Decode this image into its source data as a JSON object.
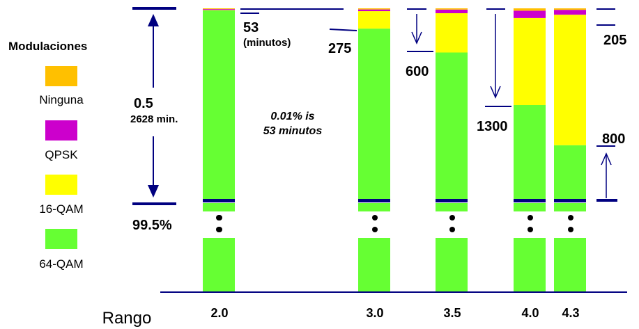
{
  "legend": {
    "title": "Modulaciones",
    "items": [
      {
        "label": "Ninguna",
        "color": "#FFC000"
      },
      {
        "label": "QPSK",
        "color": "#CC00CC"
      },
      {
        "label": "16-QAM",
        "color": "#FFFF00"
      },
      {
        "label": "64-QAM",
        "color": "#66FF33"
      }
    ]
  },
  "annotations": {
    "left_value": "0.5",
    "left_minutes": "2628 min.",
    "baseline": "99.5%",
    "note_line1": "0.01% is",
    "note_line2": "53 minutos",
    "min_53": "53",
    "min_53_unit": "(minutos)",
    "min_275": "275",
    "min_600": "600",
    "min_1300": "1300",
    "min_205": "205",
    "min_800": "800",
    "ellipsis": "•\n•"
  },
  "chart_data": {
    "type": "bar",
    "stacked": true,
    "xlabel": "Rango",
    "categories": [
      "2.0",
      "3.0",
      "3.5",
      "4.0",
      "4.3"
    ],
    "ylabel": "",
    "ylim": [
      99.5,
      100.0
    ],
    "axis_break": true,
    "series": [
      {
        "name": "64-QAM",
        "color": "#66FF33",
        "values": [
          99.9948,
          99.9476,
          99.8858,
          99.75,
          99.6461
        ]
      },
      {
        "name": "16-QAM",
        "color": "#FFFF00",
        "values": [
          0.001,
          0.0451,
          0.1016,
          0.225,
          0.3375
        ]
      },
      {
        "name": "QPSK",
        "color": "#CC00CC",
        "values": [
          0.0022,
          0.0044,
          0.0094,
          0.019,
          0.0125
        ]
      },
      {
        "name": "Ninguna",
        "color": "#FFC000",
        "values": [
          0.002,
          0.0029,
          0.0032,
          0.006,
          0.0039
        ]
      }
    ]
  }
}
